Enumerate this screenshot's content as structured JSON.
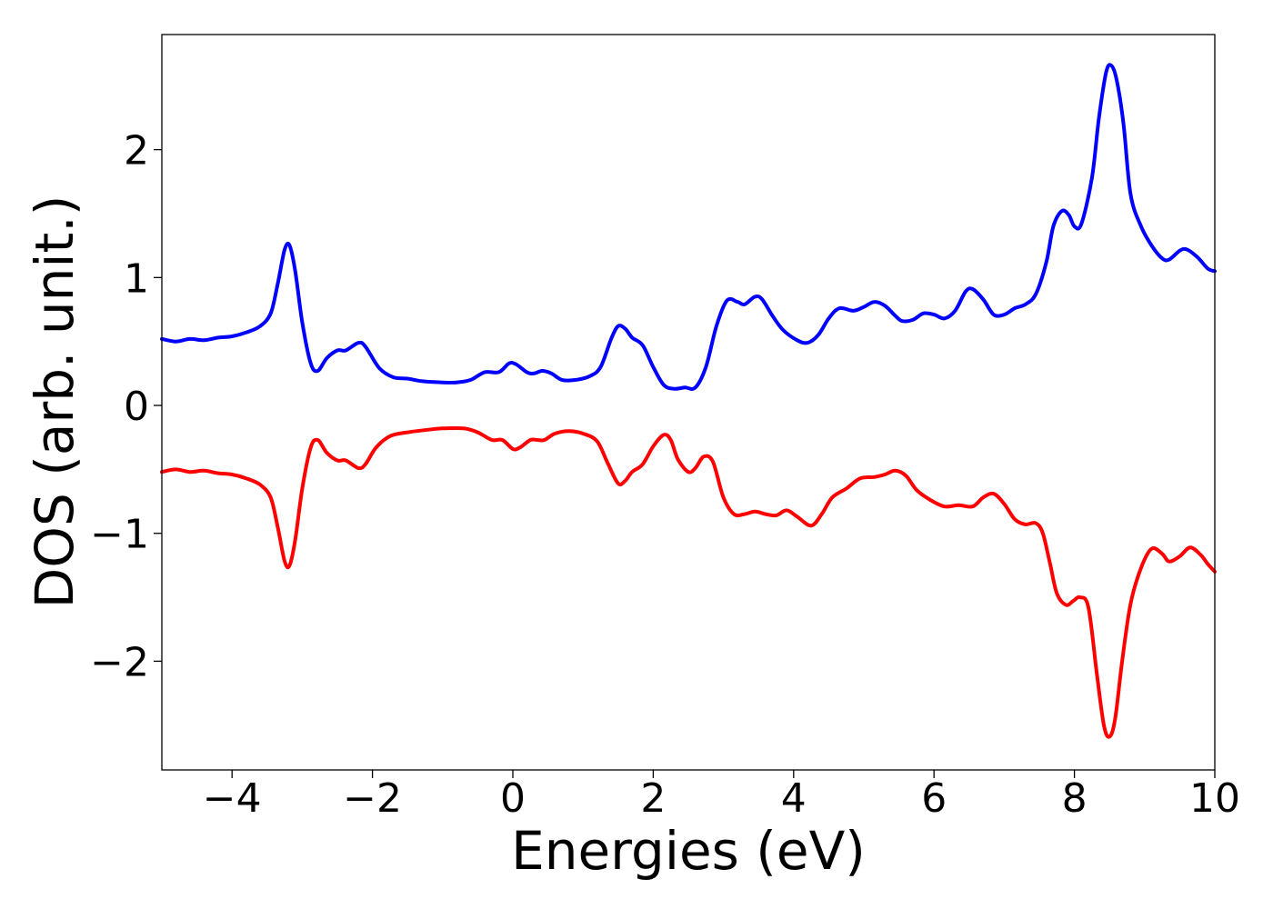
{
  "chart_data": {
    "type": "line",
    "xlabel": "Energies (eV)",
    "ylabel": "DOS (arb. unit.)",
    "xlim": [
      -5,
      10
    ],
    "ylim": [
      -2.85,
      2.9
    ],
    "xticks": [
      -4,
      -2,
      0,
      2,
      4,
      6,
      8,
      10
    ],
    "xtick_labels": [
      "−4",
      "−2",
      "0",
      "2",
      "4",
      "6",
      "8",
      "10"
    ],
    "yticks": [
      -2,
      -1,
      0,
      1,
      2
    ],
    "ytick_labels": [
      "−2",
      "−1",
      "0",
      "1",
      "2"
    ],
    "grid": false,
    "series": [
      {
        "color": "#0000ff",
        "points": [
          [
            -5.0,
            0.52
          ],
          [
            -4.8,
            0.5
          ],
          [
            -4.6,
            0.52
          ],
          [
            -4.4,
            0.51
          ],
          [
            -4.2,
            0.53
          ],
          [
            -4.0,
            0.54
          ],
          [
            -3.8,
            0.57
          ],
          [
            -3.6,
            0.62
          ],
          [
            -3.45,
            0.72
          ],
          [
            -3.35,
            0.95
          ],
          [
            -3.25,
            1.22
          ],
          [
            -3.18,
            1.25
          ],
          [
            -3.1,
            1.05
          ],
          [
            -3.0,
            0.65
          ],
          [
            -2.88,
            0.33
          ],
          [
            -2.78,
            0.27
          ],
          [
            -2.65,
            0.37
          ],
          [
            -2.5,
            0.43
          ],
          [
            -2.38,
            0.43
          ],
          [
            -2.2,
            0.49
          ],
          [
            -2.1,
            0.46
          ],
          [
            -1.9,
            0.29
          ],
          [
            -1.7,
            0.22
          ],
          [
            -1.5,
            0.21
          ],
          [
            -1.3,
            0.19
          ],
          [
            -1.0,
            0.18
          ],
          [
            -0.8,
            0.18
          ],
          [
            -0.6,
            0.2
          ],
          [
            -0.4,
            0.26
          ],
          [
            -0.2,
            0.26
          ],
          [
            -0.05,
            0.33
          ],
          [
            0.05,
            0.32
          ],
          [
            0.2,
            0.26
          ],
          [
            0.3,
            0.25
          ],
          [
            0.42,
            0.27
          ],
          [
            0.55,
            0.25
          ],
          [
            0.7,
            0.2
          ],
          [
            0.9,
            0.2
          ],
          [
            1.1,
            0.23
          ],
          [
            1.25,
            0.3
          ],
          [
            1.4,
            0.52
          ],
          [
            1.5,
            0.62
          ],
          [
            1.6,
            0.6
          ],
          [
            1.7,
            0.53
          ],
          [
            1.85,
            0.47
          ],
          [
            2.0,
            0.3
          ],
          [
            2.15,
            0.16
          ],
          [
            2.3,
            0.13
          ],
          [
            2.45,
            0.14
          ],
          [
            2.6,
            0.14
          ],
          [
            2.75,
            0.3
          ],
          [
            2.9,
            0.62
          ],
          [
            3.05,
            0.82
          ],
          [
            3.2,
            0.81
          ],
          [
            3.3,
            0.79
          ],
          [
            3.45,
            0.85
          ],
          [
            3.55,
            0.83
          ],
          [
            3.7,
            0.7
          ],
          [
            3.85,
            0.59
          ],
          [
            4.05,
            0.51
          ],
          [
            4.2,
            0.49
          ],
          [
            4.35,
            0.55
          ],
          [
            4.5,
            0.68
          ],
          [
            4.65,
            0.76
          ],
          [
            4.85,
            0.74
          ],
          [
            5.0,
            0.77
          ],
          [
            5.15,
            0.81
          ],
          [
            5.3,
            0.78
          ],
          [
            5.45,
            0.7
          ],
          [
            5.55,
            0.66
          ],
          [
            5.7,
            0.67
          ],
          [
            5.85,
            0.72
          ],
          [
            6.0,
            0.71
          ],
          [
            6.15,
            0.68
          ],
          [
            6.3,
            0.74
          ],
          [
            6.45,
            0.89
          ],
          [
            6.55,
            0.91
          ],
          [
            6.7,
            0.83
          ],
          [
            6.85,
            0.71
          ],
          [
            7.0,
            0.71
          ],
          [
            7.15,
            0.76
          ],
          [
            7.3,
            0.79
          ],
          [
            7.45,
            0.87
          ],
          [
            7.6,
            1.12
          ],
          [
            7.7,
            1.4
          ],
          [
            7.82,
            1.52
          ],
          [
            7.92,
            1.49
          ],
          [
            8.0,
            1.4
          ],
          [
            8.1,
            1.42
          ],
          [
            8.25,
            1.78
          ],
          [
            8.35,
            2.25
          ],
          [
            8.45,
            2.6
          ],
          [
            8.52,
            2.66
          ],
          [
            8.6,
            2.55
          ],
          [
            8.7,
            2.2
          ],
          [
            8.8,
            1.65
          ],
          [
            8.95,
            1.4
          ],
          [
            9.1,
            1.25
          ],
          [
            9.25,
            1.15
          ],
          [
            9.35,
            1.14
          ],
          [
            9.5,
            1.21
          ],
          [
            9.6,
            1.22
          ],
          [
            9.75,
            1.16
          ],
          [
            9.9,
            1.07
          ],
          [
            10.0,
            1.05
          ]
        ]
      },
      {
        "color": "#ff0000",
        "points": [
          [
            -5.0,
            -0.52
          ],
          [
            -4.8,
            -0.5
          ],
          [
            -4.6,
            -0.52
          ],
          [
            -4.4,
            -0.51
          ],
          [
            -4.2,
            -0.53
          ],
          [
            -4.0,
            -0.54
          ],
          [
            -3.8,
            -0.57
          ],
          [
            -3.6,
            -0.62
          ],
          [
            -3.45,
            -0.72
          ],
          [
            -3.35,
            -0.95
          ],
          [
            -3.25,
            -1.22
          ],
          [
            -3.18,
            -1.25
          ],
          [
            -3.1,
            -1.05
          ],
          [
            -3.0,
            -0.65
          ],
          [
            -2.88,
            -0.33
          ],
          [
            -2.78,
            -0.27
          ],
          [
            -2.65,
            -0.37
          ],
          [
            -2.5,
            -0.43
          ],
          [
            -2.38,
            -0.43
          ],
          [
            -2.2,
            -0.49
          ],
          [
            -2.1,
            -0.46
          ],
          [
            -1.95,
            -0.33
          ],
          [
            -1.75,
            -0.24
          ],
          [
            -1.5,
            -0.21
          ],
          [
            -1.2,
            -0.19
          ],
          [
            -1.0,
            -0.18
          ],
          [
            -0.7,
            -0.18
          ],
          [
            -0.5,
            -0.21
          ],
          [
            -0.3,
            -0.27
          ],
          [
            -0.15,
            -0.27
          ],
          [
            0.0,
            -0.34
          ],
          [
            0.1,
            -0.33
          ],
          [
            0.25,
            -0.27
          ],
          [
            0.35,
            -0.27
          ],
          [
            0.45,
            -0.27
          ],
          [
            0.6,
            -0.22
          ],
          [
            0.8,
            -0.2
          ],
          [
            1.0,
            -0.22
          ],
          [
            1.2,
            -0.28
          ],
          [
            1.35,
            -0.45
          ],
          [
            1.5,
            -0.61
          ],
          [
            1.6,
            -0.59
          ],
          [
            1.7,
            -0.52
          ],
          [
            1.85,
            -0.46
          ],
          [
            2.0,
            -0.32
          ],
          [
            2.15,
            -0.23
          ],
          [
            2.25,
            -0.27
          ],
          [
            2.35,
            -0.42
          ],
          [
            2.5,
            -0.52
          ],
          [
            2.6,
            -0.49
          ],
          [
            2.72,
            -0.4
          ],
          [
            2.85,
            -0.44
          ],
          [
            3.0,
            -0.72
          ],
          [
            3.15,
            -0.85
          ],
          [
            3.3,
            -0.85
          ],
          [
            3.45,
            -0.83
          ],
          [
            3.6,
            -0.85
          ],
          [
            3.75,
            -0.86
          ],
          [
            3.9,
            -0.82
          ],
          [
            4.05,
            -0.87
          ],
          [
            4.25,
            -0.94
          ],
          [
            4.4,
            -0.85
          ],
          [
            4.55,
            -0.72
          ],
          [
            4.75,
            -0.65
          ],
          [
            4.95,
            -0.57
          ],
          [
            5.15,
            -0.56
          ],
          [
            5.3,
            -0.54
          ],
          [
            5.45,
            -0.51
          ],
          [
            5.6,
            -0.55
          ],
          [
            5.75,
            -0.66
          ],
          [
            5.95,
            -0.74
          ],
          [
            6.15,
            -0.79
          ],
          [
            6.35,
            -0.78
          ],
          [
            6.55,
            -0.79
          ],
          [
            6.7,
            -0.72
          ],
          [
            6.85,
            -0.69
          ],
          [
            7.0,
            -0.77
          ],
          [
            7.15,
            -0.89
          ],
          [
            7.3,
            -0.93
          ],
          [
            7.45,
            -0.92
          ],
          [
            7.55,
            -1.0
          ],
          [
            7.65,
            -1.23
          ],
          [
            7.75,
            -1.47
          ],
          [
            7.88,
            -1.56
          ],
          [
            7.98,
            -1.53
          ],
          [
            8.08,
            -1.5
          ],
          [
            8.2,
            -1.58
          ],
          [
            8.32,
            -2.1
          ],
          [
            8.42,
            -2.5
          ],
          [
            8.5,
            -2.59
          ],
          [
            8.58,
            -2.45
          ],
          [
            8.68,
            -2.0
          ],
          [
            8.8,
            -1.55
          ],
          [
            8.95,
            -1.27
          ],
          [
            9.1,
            -1.12
          ],
          [
            9.25,
            -1.16
          ],
          [
            9.35,
            -1.22
          ],
          [
            9.5,
            -1.18
          ],
          [
            9.65,
            -1.11
          ],
          [
            9.8,
            -1.17
          ],
          [
            9.9,
            -1.24
          ],
          [
            10.0,
            -1.3
          ]
        ]
      }
    ]
  }
}
